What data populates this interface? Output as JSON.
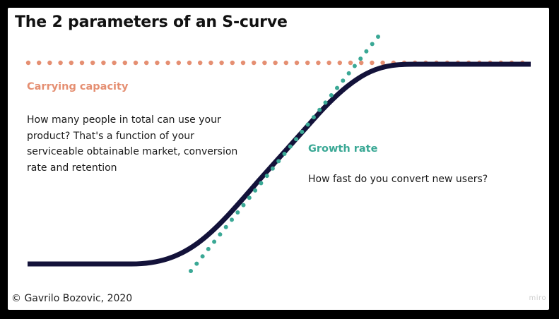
{
  "title": "The 2 parameters of an S-curve",
  "carrying_capacity": {
    "label": "Carrying capacity",
    "description": "How many people in total can use your product? That's a function of your serviceable obtainable market, conversion rate and retention"
  },
  "growth_rate": {
    "label": "Growth rate",
    "description": "How fast do you convert new users?"
  },
  "copyright": "© Gavrilo Bozovic, 2020",
  "watermark": "miro",
  "colors": {
    "curve": "#13123a",
    "capacity": "#e58f72",
    "growth": "#3aa895"
  }
}
